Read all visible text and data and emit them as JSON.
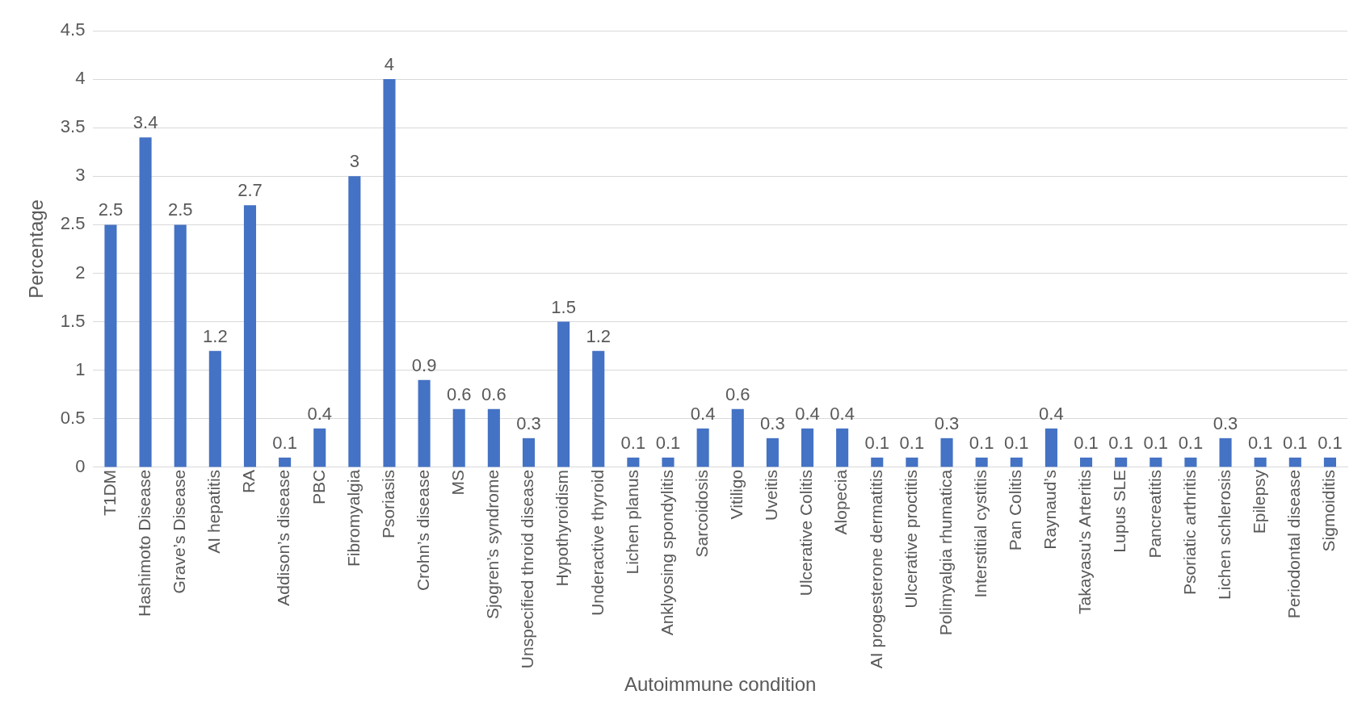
{
  "chart_data": {
    "type": "bar",
    "xlabel": "Autoimmune condition",
    "ylabel": "Percentage",
    "categories": [
      "T1DM",
      "Hashimoto Disease",
      "Grave’s Disease",
      "AI hepatitis",
      "RA",
      "Addison’s disease",
      "PBC",
      "Fibromyalgia",
      "Psoriasis",
      "Crohn’s disease",
      "MS",
      "Sjogren’s syndrome",
      "Unspecified throid disease",
      "Hypothyroidism",
      "Underactive thyroid",
      "Lichen planus",
      "Anklyosing spondylitis",
      "Sarcoidosis",
      "Vitiligo",
      "Uveitis",
      "Ulcerative Colitis",
      "Alopecia",
      "AI progesterone dermatitis",
      "Ulcerative proctitis",
      "Polimyalgia rhumatica",
      "Interstitial cystitis",
      "Pan Colitis",
      "Raynaud’s",
      "Takayasu's Arteritis",
      "Lupus SLE",
      "Pancreatitis",
      "Psoriatic arthritis",
      "Lichen schlerosis",
      "Epilepsy",
      "Periodontal disease",
      "Sigmoiditis"
    ],
    "values": [
      2.5,
      3.4,
      2.5,
      1.2,
      2.7,
      0.1,
      0.4,
      3,
      4,
      0.9,
      0.6,
      0.6,
      0.3,
      1.5,
      1.2,
      0.1,
      0.1,
      0.4,
      0.6,
      0.3,
      0.4,
      0.4,
      0.1,
      0.1,
      0.3,
      0.1,
      0.1,
      0.4,
      0.1,
      0.1,
      0.1,
      0.1,
      0.3,
      0.1,
      0.1,
      0.1
    ],
    "color": "#4472c4",
    "ylim": [
      0,
      4.5
    ],
    "yticks": [
      0,
      0.5,
      1,
      1.5,
      2,
      2.5,
      3,
      3.5,
      4,
      4.5
    ],
    "grid": "y",
    "data_labels": true
  }
}
